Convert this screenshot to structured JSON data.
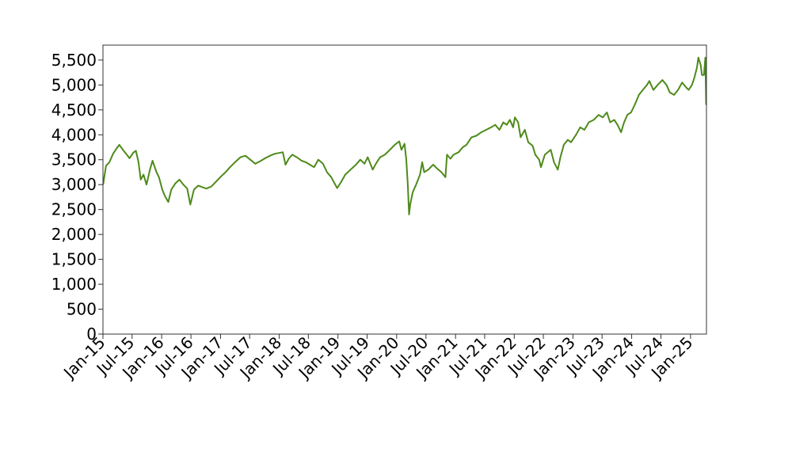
{
  "chart_data": {
    "type": "line",
    "title": "",
    "xlabel": "",
    "ylabel": "",
    "grid": false,
    "legend": "none",
    "x_range": [
      "2015-01-01",
      "2025-04-10"
    ],
    "ylim": [
      0,
      5800
    ],
    "y_ticks": [
      0,
      500,
      1000,
      1500,
      2000,
      2500,
      3000,
      3500,
      4000,
      4500,
      5000,
      5500
    ],
    "y_tick_labels": [
      "0",
      "500",
      "1,000",
      "1,500",
      "2,000",
      "2,500",
      "3,000",
      "3,500",
      "4,000",
      "4,500",
      "5,000",
      "5,500"
    ],
    "x_ticks": [
      "2015-01-01",
      "2015-07-01",
      "2016-01-01",
      "2016-07-01",
      "2017-01-01",
      "2017-07-01",
      "2018-01-01",
      "2018-07-01",
      "2019-01-01",
      "2019-07-01",
      "2020-01-01",
      "2020-07-01",
      "2021-01-01",
      "2021-07-01",
      "2022-01-01",
      "2022-07-01",
      "2023-01-01",
      "2023-07-01",
      "2024-01-01",
      "2024-07-01",
      "2025-01-01"
    ],
    "x_tick_labels": [
      "Jan-15",
      "Jul-15",
      "Jan-16",
      "Jul-16",
      "Jan-17",
      "Jul-17",
      "Jan-18",
      "Jul-18",
      "Jan-19",
      "Jul-19",
      "Jan-20",
      "Jul-20",
      "Jan-21",
      "Jul-21",
      "Jan-22",
      "Jul-22",
      "Jan-23",
      "Jul-23",
      "Jan-24",
      "Jul-24",
      "Jan-25"
    ],
    "series": [
      {
        "name": "",
        "color": "#4e8a1a",
        "x": [
          "2015-01-02",
          "2015-01-20",
          "2015-02-10",
          "2015-03-05",
          "2015-03-25",
          "2015-04-13",
          "2015-05-05",
          "2015-05-25",
          "2015-06-15",
          "2015-07-08",
          "2015-07-25",
          "2015-08-10",
          "2015-08-24",
          "2015-09-10",
          "2015-09-29",
          "2015-10-20",
          "2015-11-05",
          "2015-11-30",
          "2015-12-15",
          "2016-01-05",
          "2016-01-20",
          "2016-02-11",
          "2016-03-01",
          "2016-03-25",
          "2016-04-20",
          "2016-05-15",
          "2016-06-08",
          "2016-06-27",
          "2016-07-20",
          "2016-08-15",
          "2016-09-10",
          "2016-10-05",
          "2016-11-04",
          "2016-12-01",
          "2016-12-30",
          "2017-02-01",
          "2017-03-01",
          "2017-04-01",
          "2017-05-05",
          "2017-06-05",
          "2017-07-05",
          "2017-08-05",
          "2017-09-05",
          "2017-10-05",
          "2017-11-05",
          "2017-12-05",
          "2018-01-23",
          "2018-02-09",
          "2018-03-01",
          "2018-03-23",
          "2018-04-20",
          "2018-05-20",
          "2018-06-15",
          "2018-07-10",
          "2018-08-05",
          "2018-09-01",
          "2018-09-30",
          "2018-10-25",
          "2018-11-20",
          "2018-12-27",
          "2019-01-20",
          "2019-02-15",
          "2019-03-20",
          "2019-04-23",
          "2019-05-20",
          "2019-06-15",
          "2019-07-05",
          "2019-08-05",
          "2019-08-25",
          "2019-09-20",
          "2019-10-20",
          "2019-11-20",
          "2019-12-20",
          "2020-01-17",
          "2020-01-31",
          "2020-02-19",
          "2020-03-01",
          "2020-03-10",
          "2020-03-18",
          "2020-03-25",
          "2020-04-10",
          "2020-05-01",
          "2020-05-25",
          "2020-06-08",
          "2020-06-20",
          "2020-07-15",
          "2020-08-15",
          "2020-09-10",
          "2020-10-05",
          "2020-10-30",
          "2020-11-09",
          "2020-11-30",
          "2020-12-20",
          "2021-01-20",
          "2021-02-15",
          "2021-03-10",
          "2021-04-10",
          "2021-05-10",
          "2021-06-10",
          "2021-07-10",
          "2021-08-10",
          "2021-09-05",
          "2021-10-01",
          "2021-10-25",
          "2021-11-15",
          "2021-12-05",
          "2021-12-25",
          "2022-01-05",
          "2022-01-25",
          "2022-02-10",
          "2022-03-08",
          "2022-03-29",
          "2022-04-25",
          "2022-05-12",
          "2022-06-05",
          "2022-06-16",
          "2022-07-10",
          "2022-08-16",
          "2022-09-05",
          "2022-09-29",
          "2022-10-15",
          "2022-11-05",
          "2022-11-30",
          "2022-12-20",
          "2023-01-20",
          "2023-02-15",
          "2023-03-13",
          "2023-04-10",
          "2023-05-10",
          "2023-06-10",
          "2023-07-05",
          "2023-07-31",
          "2023-08-20",
          "2023-09-15",
          "2023-10-05",
          "2023-10-27",
          "2023-11-15",
          "2023-12-05",
          "2023-12-28",
          "2024-01-20",
          "2024-02-15",
          "2024-03-10",
          "2024-04-05",
          "2024-04-20",
          "2024-05-15",
          "2024-06-10",
          "2024-07-10",
          "2024-08-05",
          "2024-08-25",
          "2024-09-20",
          "2024-10-15",
          "2024-11-10",
          "2024-12-05",
          "2024-12-20",
          "2025-01-10",
          "2025-01-25",
          "2025-02-10",
          "2025-02-19",
          "2025-03-05",
          "2025-03-13",
          "2025-03-25",
          "2025-04-03",
          "2025-04-08"
        ],
        "values": [
          3000,
          3380,
          3450,
          3620,
          3720,
          3800,
          3700,
          3620,
          3530,
          3640,
          3680,
          3450,
          3100,
          3200,
          3000,
          3300,
          3480,
          3250,
          3150,
          2900,
          2780,
          2650,
          2900,
          3020,
          3100,
          3000,
          2920,
          2600,
          2900,
          2980,
          2950,
          2920,
          2960,
          3050,
          3150,
          3250,
          3350,
          3450,
          3550,
          3580,
          3500,
          3420,
          3470,
          3530,
          3580,
          3620,
          3650,
          3400,
          3520,
          3600,
          3550,
          3480,
          3450,
          3400,
          3350,
          3500,
          3420,
          3250,
          3150,
          2930,
          3050,
          3200,
          3300,
          3400,
          3500,
          3420,
          3550,
          3300,
          3420,
          3550,
          3600,
          3700,
          3800,
          3870,
          3700,
          3820,
          3500,
          3000,
          2400,
          2600,
          2850,
          3000,
          3200,
          3450,
          3250,
          3300,
          3400,
          3320,
          3250,
          3150,
          3600,
          3520,
          3600,
          3650,
          3750,
          3800,
          3950,
          3980,
          4050,
          4100,
          4150,
          4200,
          4100,
          4250,
          4200,
          4300,
          4150,
          4350,
          4250,
          3950,
          4100,
          3850,
          3780,
          3600,
          3500,
          3350,
          3600,
          3700,
          3450,
          3300,
          3550,
          3800,
          3900,
          3850,
          4000,
          4150,
          4100,
          4250,
          4300,
          4400,
          4350,
          4450,
          4250,
          4300,
          4200,
          4050,
          4250,
          4400,
          4450,
          4600,
          4800,
          4900,
          5000,
          5080,
          4900,
          5000,
          5100,
          5000,
          4850,
          4800,
          4900,
          5050,
          4950,
          4900,
          5000,
          5150,
          5350,
          5550,
          5400,
          5200,
          5200,
          5550,
          4600
        ]
      }
    ]
  }
}
